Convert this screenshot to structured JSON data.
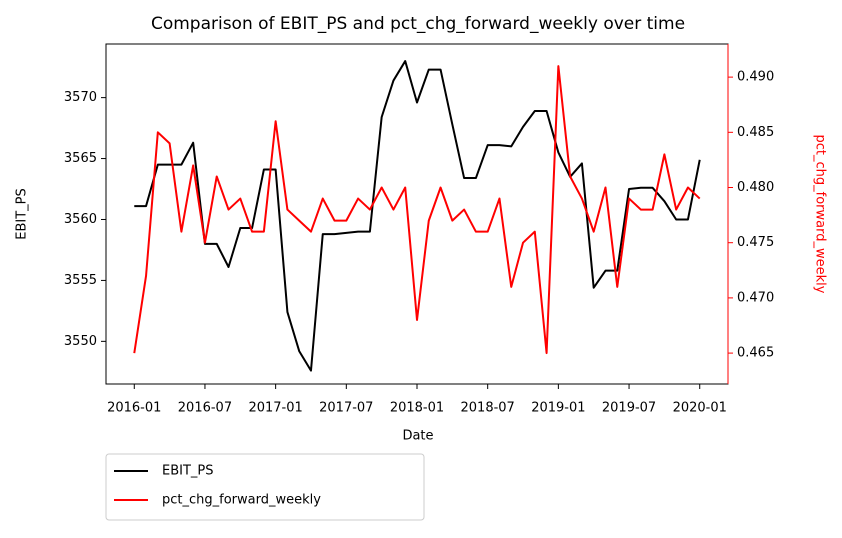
{
  "chart_data": {
    "type": "line",
    "title": "Comparison of EBIT_PS and pct_chg_forward_weekly over time",
    "xlabel": "Date",
    "ylabel": "EBIT_PS",
    "y2label": "pct_chg_forward_weekly",
    "x": [
      "2016-01",
      "2016-02",
      "2016-03",
      "2016-04",
      "2016-05",
      "2016-06",
      "2016-07",
      "2016-08",
      "2016-09",
      "2016-10",
      "2016-11",
      "2016-12",
      "2017-01",
      "2017-02",
      "2017-03",
      "2017-04",
      "2017-05",
      "2017-06",
      "2017-07",
      "2017-08",
      "2017-09",
      "2017-10",
      "2017-11",
      "2017-12",
      "2018-01",
      "2018-02",
      "2018-03",
      "2018-04",
      "2018-05",
      "2018-06",
      "2018-07",
      "2018-08",
      "2018-09",
      "2018-10",
      "2018-11",
      "2018-12",
      "2019-01",
      "2019-02",
      "2019-03",
      "2019-04",
      "2019-05",
      "2019-06",
      "2019-07",
      "2019-08",
      "2019-09",
      "2019-10",
      "2019-11",
      "2019-12",
      "2020-01"
    ],
    "series": [
      {
        "name": "EBIT_PS",
        "color": "#000000",
        "axis": "y",
        "values": [
          3561.1,
          3561.1,
          3564.5,
          3564.5,
          3564.5,
          3566.3,
          3558,
          3558,
          3556.1,
          3559.3,
          3559.3,
          3564.1,
          3564.1,
          3552.4,
          3549.2,
          3547.6,
          3558.8,
          3558.8,
          3558.9,
          3559,
          3559,
          3568.4,
          3571.4,
          3573,
          3569.6,
          3572.3,
          3572.3,
          3567.8,
          3563.4,
          3563.4,
          3566.1,
          3566.1,
          3566,
          3567.6,
          3568.9,
          3568.9,
          3565.5,
          3563.5,
          3564.6,
          3554.4,
          3555.8,
          3555.8,
          3562.5,
          3562.6,
          3562.6,
          3561.5,
          3560,
          3560,
          3564.9
        ]
      },
      {
        "name": "pct_chg_forward_weekly",
        "color": "#ff0000",
        "axis": "y2",
        "values": [
          0.465,
          0.472,
          0.485,
          0.484,
          0.476,
          0.482,
          0.475,
          0.481,
          0.478,
          0.479,
          0.476,
          0.476,
          0.486,
          0.478,
          0.477,
          0.476,
          0.479,
          0.477,
          0.477,
          0.479,
          0.478,
          0.48,
          0.478,
          0.48,
          0.468,
          0.477,
          0.48,
          0.477,
          0.478,
          0.476,
          0.476,
          0.479,
          0.471,
          0.475,
          0.476,
          0.465,
          0.491,
          0.481,
          0.479,
          0.476,
          0.48,
          0.471,
          0.479,
          0.478,
          0.478,
          0.483,
          0.478,
          0.48,
          0.479
        ]
      }
    ],
    "xticks": [
      "2016-01",
      "2016-07",
      "2017-01",
      "2017-07",
      "2018-01",
      "2018-07",
      "2019-01",
      "2019-07",
      "2020-01"
    ],
    "ylim": [
      3546.5,
      3574.4
    ],
    "yticks": [
      3550,
      3555,
      3560,
      3565,
      3570
    ],
    "y2lim": [
      0.4622,
      0.493
    ],
    "y2ticks": [
      0.465,
      {
        "value": 0.47,
        "label": "0.470"
      },
      0.475,
      {
        "value": 0.48,
        "label": "0.480"
      },
      0.485,
      {
        "value": 0.49,
        "label": "0.490"
      }
    ],
    "y2color": "#ff0000",
    "legend": "below"
  }
}
